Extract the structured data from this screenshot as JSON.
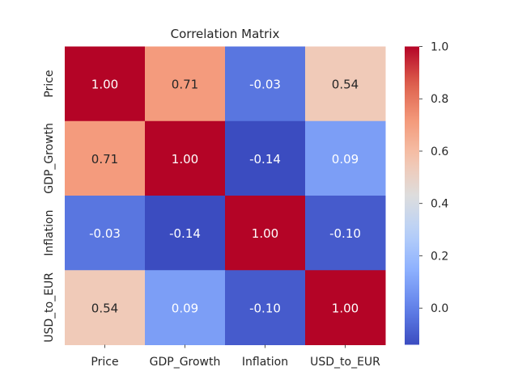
{
  "chart_data": {
    "type": "heatmap",
    "title": "Correlation Matrix",
    "xlabel": "",
    "ylabel": "",
    "x_categories": [
      "Price",
      "GDP_Growth",
      "Inflation",
      "USD_to_EUR"
    ],
    "y_categories": [
      "Price",
      "GDP_Growth",
      "Inflation",
      "USD_to_EUR"
    ],
    "values": [
      [
        1.0,
        0.71,
        -0.03,
        0.54
      ],
      [
        0.71,
        1.0,
        -0.14,
        0.09
      ],
      [
        -0.03,
        -0.14,
        1.0,
        -0.1
      ],
      [
        0.54,
        0.09,
        -0.1,
        1.0
      ]
    ],
    "annotations": [
      [
        "1.00",
        "0.71",
        "-0.03",
        "0.54"
      ],
      [
        "0.71",
        "1.00",
        "-0.14",
        "0.09"
      ],
      [
        "-0.03",
        "-0.14",
        "1.00",
        "-0.10"
      ],
      [
        "0.54",
        "0.09",
        "-0.10",
        "1.00"
      ]
    ],
    "colormap": "coolwarm",
    "colorbar": {
      "range": [
        -0.14,
        1.0
      ],
      "ticks": [
        0.0,
        0.2,
        0.4,
        0.6,
        0.8,
        1.0
      ],
      "tick_labels": [
        "0.0",
        "0.2",
        "0.4",
        "0.6",
        "0.8",
        "1.0"
      ]
    },
    "grid": false,
    "legend": "colorbar-right"
  }
}
